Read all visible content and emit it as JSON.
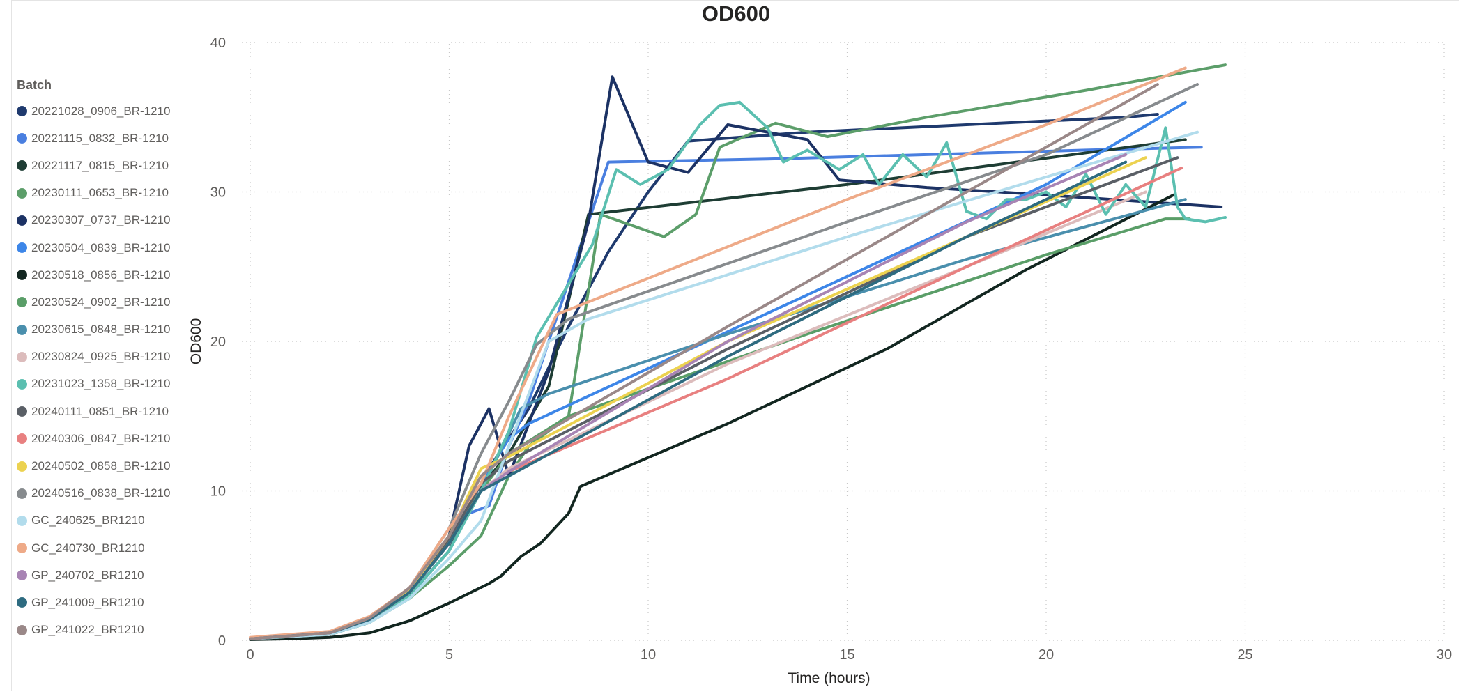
{
  "chart_data": {
    "type": "line",
    "title": "OD600",
    "xlabel": "Time (hours)",
    "ylabel": "OD600",
    "xlim": [
      0,
      30
    ],
    "ylim": [
      0,
      40
    ],
    "xticks": [
      0,
      5,
      10,
      15,
      20,
      25,
      30
    ],
    "yticks": [
      0,
      10,
      20,
      30,
      40
    ],
    "grid": true,
    "legend_title": "Batch",
    "legend_position": "left",
    "series": [
      {
        "name": "20221028_0906_BR-1210",
        "color": "#1f3a6e",
        "points": [
          [
            0,
            0.1
          ],
          [
            2,
            0.4
          ],
          [
            3,
            1.2
          ],
          [
            4,
            3
          ],
          [
            5,
            6
          ],
          [
            5.5,
            9
          ],
          [
            6,
            11.5
          ],
          [
            7,
            15.5
          ],
          [
            8,
            21
          ],
          [
            9,
            26
          ],
          [
            10,
            30
          ],
          [
            11,
            33.4
          ],
          [
            12,
            33.6
          ],
          [
            13,
            33.8
          ],
          [
            14,
            34
          ],
          [
            18,
            34.5
          ],
          [
            22,
            35
          ],
          [
            22.8,
            35.2
          ]
        ]
      },
      {
        "name": "20221115_0832_BR-1210",
        "color": "#4a7fe0",
        "points": [
          [
            0,
            0.1
          ],
          [
            2,
            0.5
          ],
          [
            3,
            1.5
          ],
          [
            4,
            3.5
          ],
          [
            5,
            6.5
          ],
          [
            5.5,
            8.5
          ],
          [
            6,
            9
          ],
          [
            6.5,
            13
          ],
          [
            7,
            16
          ],
          [
            8,
            24
          ],
          [
            9,
            32
          ],
          [
            13,
            32.2
          ],
          [
            17,
            32.5
          ],
          [
            21,
            32.8
          ],
          [
            23.9,
            33
          ]
        ]
      },
      {
        "name": "20221117_0815_BR-1210",
        "color": "#1e3d34",
        "points": [
          [
            0,
            0.1
          ],
          [
            2,
            0.4
          ],
          [
            3,
            1.2
          ],
          [
            4,
            3
          ],
          [
            5,
            6
          ],
          [
            5.7,
            10
          ],
          [
            6.5,
            12.5
          ],
          [
            7.5,
            17
          ],
          [
            8.5,
            28.5
          ],
          [
            15,
            30.5
          ],
          [
            23.5,
            33.5
          ]
        ]
      },
      {
        "name": "20230111_0653_BR-1210",
        "color": "#5c9e6a",
        "points": [
          [
            0,
            0.1
          ],
          [
            2,
            0.4
          ],
          [
            3,
            1.2
          ],
          [
            4,
            2.8
          ],
          [
            5,
            5
          ],
          [
            5.8,
            7
          ],
          [
            6.5,
            11
          ],
          [
            7,
            13
          ],
          [
            8,
            15
          ],
          [
            8.8,
            28.5
          ],
          [
            10.4,
            27
          ],
          [
            11.2,
            28.5
          ],
          [
            11.8,
            33
          ],
          [
            13.2,
            34.6
          ],
          [
            14.5,
            33.7
          ],
          [
            17,
            35
          ],
          [
            21,
            36.8
          ],
          [
            24.5,
            38.5
          ]
        ]
      },
      {
        "name": "20230307_0737_BR-1210",
        "color": "#1c3264",
        "points": [
          [
            0,
            0.1
          ],
          [
            2,
            0.5
          ],
          [
            3,
            1.5
          ],
          [
            4,
            3.5
          ],
          [
            5,
            7
          ],
          [
            5.5,
            13
          ],
          [
            6,
            15.5
          ],
          [
            6.5,
            11
          ],
          [
            7.5,
            18
          ],
          [
            8.5,
            28
          ],
          [
            9.1,
            37.7
          ],
          [
            10,
            32
          ],
          [
            11,
            31.3
          ],
          [
            12,
            34.5
          ],
          [
            14,
            33.5
          ],
          [
            14.8,
            30.8
          ],
          [
            17,
            30.3
          ],
          [
            20,
            29.8
          ],
          [
            24.4,
            29
          ]
        ]
      },
      {
        "name": "20230504_0839_BR-1210",
        "color": "#3d86e8",
        "points": [
          [
            0,
            0.1
          ],
          [
            2,
            0.5
          ],
          [
            3,
            1.4
          ],
          [
            4,
            3.2
          ],
          [
            5,
            6.5
          ],
          [
            5.8,
            10.5
          ],
          [
            6.5,
            13.5
          ],
          [
            7,
            14.5
          ],
          [
            20,
            30.5
          ],
          [
            23.5,
            36
          ]
        ]
      },
      {
        "name": "20230518_0856_BR-1210",
        "color": "#122620",
        "points": [
          [
            0,
            0.05
          ],
          [
            1,
            0.1
          ],
          [
            2,
            0.2
          ],
          [
            3,
            0.5
          ],
          [
            4,
            1.3
          ],
          [
            5,
            2.5
          ],
          [
            6,
            3.8
          ],
          [
            6.3,
            4.3
          ],
          [
            6.8,
            5.6
          ],
          [
            7.3,
            6.5
          ],
          [
            8,
            8.5
          ],
          [
            8.3,
            10.3
          ],
          [
            12,
            14.5
          ],
          [
            16,
            19.5
          ],
          [
            19.5,
            24.8
          ],
          [
            23.2,
            29.8
          ]
        ]
      },
      {
        "name": "20230524_0902_BR-1210",
        "color": "#5a9e68",
        "points": [
          [
            0,
            0.1
          ],
          [
            2,
            0.5
          ],
          [
            3,
            1.5
          ],
          [
            4,
            3.5
          ],
          [
            5,
            7
          ],
          [
            5.8,
            10
          ],
          [
            6.5,
            12.5
          ],
          [
            8,
            15
          ],
          [
            14,
            20.5
          ],
          [
            20,
            25.8
          ],
          [
            23,
            28.2
          ],
          [
            23.6,
            28.2
          ]
        ]
      },
      {
        "name": "20230615_0848_BR-1210",
        "color": "#4a8fad",
        "points": [
          [
            0,
            0.1
          ],
          [
            2,
            0.5
          ],
          [
            3,
            1.4
          ],
          [
            4,
            3
          ],
          [
            5,
            6
          ],
          [
            5.8,
            10
          ],
          [
            6.8,
            15.5
          ],
          [
            7.5,
            16.5
          ],
          [
            12,
            20.5
          ],
          [
            18,
            25.5
          ],
          [
            23.5,
            29.5
          ]
        ]
      },
      {
        "name": "20230824_0925_BR-1210",
        "color": "#dcbcbc",
        "points": [
          [
            0,
            0.1
          ],
          [
            2,
            0.5
          ],
          [
            3,
            1.4
          ],
          [
            4,
            3.2
          ],
          [
            5,
            6.5
          ],
          [
            5.8,
            10
          ],
          [
            6.5,
            11.5
          ],
          [
            12,
            18.5
          ],
          [
            18,
            25
          ],
          [
            22.5,
            30
          ]
        ]
      },
      {
        "name": "20231023_1358_BR-1210",
        "color": "#5bbfb0",
        "points": [
          [
            0,
            0.1
          ],
          [
            2,
            0.4
          ],
          [
            3,
            1.2
          ],
          [
            4,
            3
          ],
          [
            5,
            6
          ],
          [
            5.8,
            10
          ],
          [
            6.5,
            14
          ],
          [
            7.2,
            20.3
          ],
          [
            8.6,
            26.5
          ],
          [
            9.2,
            31.5
          ],
          [
            9.8,
            30.5
          ],
          [
            10.5,
            31.5
          ],
          [
            11.3,
            34.5
          ],
          [
            11.8,
            35.8
          ],
          [
            12.3,
            36
          ],
          [
            13,
            34.3
          ],
          [
            13.4,
            32
          ],
          [
            14,
            32.8
          ],
          [
            14.8,
            31.5
          ],
          [
            15.4,
            32.5
          ],
          [
            15.8,
            30.5
          ],
          [
            16.4,
            32.5
          ],
          [
            17,
            31
          ],
          [
            17.5,
            33.3
          ],
          [
            18,
            28.7
          ],
          [
            18.5,
            28.2
          ],
          [
            19,
            29.5
          ],
          [
            19.5,
            29.5
          ],
          [
            20,
            30
          ],
          [
            20.5,
            29
          ],
          [
            21,
            31.2
          ],
          [
            21.5,
            28.5
          ],
          [
            22,
            30.5
          ],
          [
            22.5,
            29
          ],
          [
            23,
            34.3
          ],
          [
            23.3,
            29
          ],
          [
            23.5,
            28.2
          ],
          [
            24,
            28
          ],
          [
            24.5,
            28.3
          ]
        ]
      },
      {
        "name": "20240111_0851_BR-1210",
        "color": "#5a5f66",
        "points": [
          [
            0,
            0.1
          ],
          [
            2,
            0.5
          ],
          [
            3,
            1.5
          ],
          [
            4,
            3.3
          ],
          [
            5,
            6.7
          ],
          [
            5.8,
            10.5
          ],
          [
            6.5,
            12
          ],
          [
            12,
            19.5
          ],
          [
            18,
            27
          ],
          [
            23.3,
            32.3
          ]
        ]
      },
      {
        "name": "20240306_0847_BR-1210",
        "color": "#e88080",
        "points": [
          [
            0,
            0.1
          ],
          [
            2,
            0.5
          ],
          [
            3,
            1.4
          ],
          [
            4,
            3.2
          ],
          [
            5,
            6.5
          ],
          [
            5.8,
            10
          ],
          [
            6.5,
            11.3
          ],
          [
            12,
            17.5
          ],
          [
            18,
            25
          ],
          [
            23.4,
            31.6
          ]
        ]
      },
      {
        "name": "20240502_0858_BR-1210",
        "color": "#ecd250",
        "points": [
          [
            0,
            0.1
          ],
          [
            2,
            0.5
          ],
          [
            3,
            1.5
          ],
          [
            4,
            3.4
          ],
          [
            5,
            7
          ],
          [
            5.8,
            11.5
          ],
          [
            6.5,
            12.3
          ],
          [
            12,
            20
          ],
          [
            18,
            27
          ],
          [
            22.5,
            32.3
          ]
        ]
      },
      {
        "name": "20240516_0838_BR-1210",
        "color": "#878b8e",
        "points": [
          [
            0,
            0.1
          ],
          [
            2,
            0.5
          ],
          [
            3,
            1.5
          ],
          [
            4,
            3.5
          ],
          [
            5,
            7.5
          ],
          [
            5.8,
            12.5
          ],
          [
            6.5,
            16
          ],
          [
            7.2,
            19.8
          ],
          [
            8,
            21.5
          ],
          [
            15,
            28
          ],
          [
            20,
            32.5
          ],
          [
            23.8,
            37.2
          ]
        ]
      },
      {
        "name": "GC_240625_BR1210",
        "color": "#b2dcec",
        "points": [
          [
            0,
            0.1
          ],
          [
            2,
            0.4
          ],
          [
            3,
            1.2
          ],
          [
            4,
            2.8
          ],
          [
            5,
            5.5
          ],
          [
            5.8,
            8
          ],
          [
            6.5,
            13
          ],
          [
            7.5,
            20
          ],
          [
            8.5,
            21.5
          ],
          [
            15,
            27
          ],
          [
            20,
            31
          ],
          [
            23.8,
            34
          ]
        ]
      },
      {
        "name": "GC_240730_BR1210",
        "color": "#eeaa88",
        "points": [
          [
            0,
            0.2
          ],
          [
            2,
            0.6
          ],
          [
            3,
            1.6
          ],
          [
            4,
            3.5
          ],
          [
            5,
            7.5
          ],
          [
            5.8,
            10.5
          ],
          [
            6.5,
            15
          ],
          [
            7.7,
            21.8
          ],
          [
            15,
            29.5
          ],
          [
            20,
            34.5
          ],
          [
            23.5,
            38.3
          ]
        ]
      },
      {
        "name": "GP_240702_BR1210",
        "color": "#a884b4",
        "points": [
          [
            0,
            0.1
          ],
          [
            2,
            0.5
          ],
          [
            3,
            1.4
          ],
          [
            4,
            3.2
          ],
          [
            5,
            6.5
          ],
          [
            5.8,
            10
          ],
          [
            6.5,
            11.3
          ],
          [
            12,
            20
          ],
          [
            18,
            28
          ],
          [
            22,
            32.5
          ]
        ]
      },
      {
        "name": "GP_241009_BR1210",
        "color": "#2e6b80",
        "points": [
          [
            0,
            0.1
          ],
          [
            2,
            0.5
          ],
          [
            3,
            1.4
          ],
          [
            4,
            3.2
          ],
          [
            5,
            6.5
          ],
          [
            5.8,
            10
          ],
          [
            6.5,
            11
          ],
          [
            12,
            19
          ],
          [
            18,
            27
          ],
          [
            22,
            32
          ]
        ]
      },
      {
        "name": "GP_241022_BR1210",
        "color": "#9a8888",
        "points": [
          [
            0,
            0.1
          ],
          [
            2,
            0.5
          ],
          [
            3,
            1.5
          ],
          [
            4,
            3.5
          ],
          [
            5,
            7
          ],
          [
            5.8,
            11
          ],
          [
            6.5,
            12.5
          ],
          [
            12,
            21
          ],
          [
            18,
            30
          ],
          [
            22.8,
            37.2
          ]
        ]
      }
    ]
  }
}
